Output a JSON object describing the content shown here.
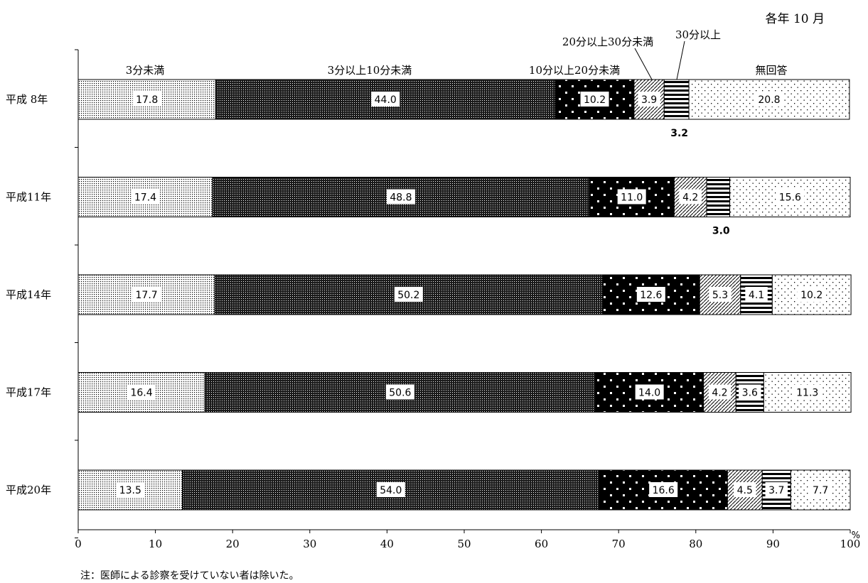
{
  "chart_data": {
    "type": "bar",
    "orientation": "horizontal",
    "stacked": true,
    "title": "",
    "period_label": "各年 10 月",
    "x_unit": "%",
    "xlim": [
      0,
      100
    ],
    "x_ticks": [
      "0",
      "10",
      "20",
      "30",
      "40",
      "50",
      "60",
      "70",
      "80",
      "90",
      "100"
    ],
    "categories": [
      "平成 8年",
      "平成11年",
      "平成14年",
      "平成17年",
      "平成20年"
    ],
    "series": [
      {
        "name": "3分未満",
        "pattern": "fine-dots",
        "values": [
          17.8,
          17.4,
          17.7,
          16.4,
          13.5
        ]
      },
      {
        "name": "3分以上10分未満",
        "pattern": "dense-dots",
        "values": [
          44.0,
          48.8,
          50.2,
          50.6,
          54.0
        ]
      },
      {
        "name": "10分以上20分未満",
        "pattern": "white-dots-on-black",
        "values": [
          10.2,
          11.0,
          12.6,
          14.0,
          16.6
        ]
      },
      {
        "name": "20分以上30分未満",
        "pattern": "diagonal-hatch",
        "values": [
          3.9,
          4.2,
          5.3,
          4.2,
          4.5
        ]
      },
      {
        "name": "30分以上",
        "pattern": "horizontal-stripes",
        "values": [
          3.2,
          3.0,
          4.1,
          3.6,
          3.7
        ]
      },
      {
        "name": "無回答",
        "pattern": "sparse-dots",
        "values": [
          20.8,
          15.6,
          10.2,
          11.3,
          7.7
        ]
      }
    ],
    "value_labels": [
      [
        "17.8",
        "44.0",
        "10.2",
        "3.9",
        "3.2",
        "20.8"
      ],
      [
        "17.4",
        "48.8",
        "11.0",
        "4.2",
        "3.0",
        "15.6"
      ],
      [
        "17.7",
        "50.2",
        "12.6",
        "5.3",
        "4.1",
        "10.2"
      ],
      [
        "16.4",
        "50.6",
        "14.0",
        "4.2",
        "3.6",
        "11.3"
      ],
      [
        "13.5",
        "54.0",
        "16.6",
        "4.5",
        "3.7",
        "7.7"
      ]
    ],
    "note": "注：医師による診察を受けていない者は除いた。",
    "legend": "series names placed directly above the first bar"
  }
}
